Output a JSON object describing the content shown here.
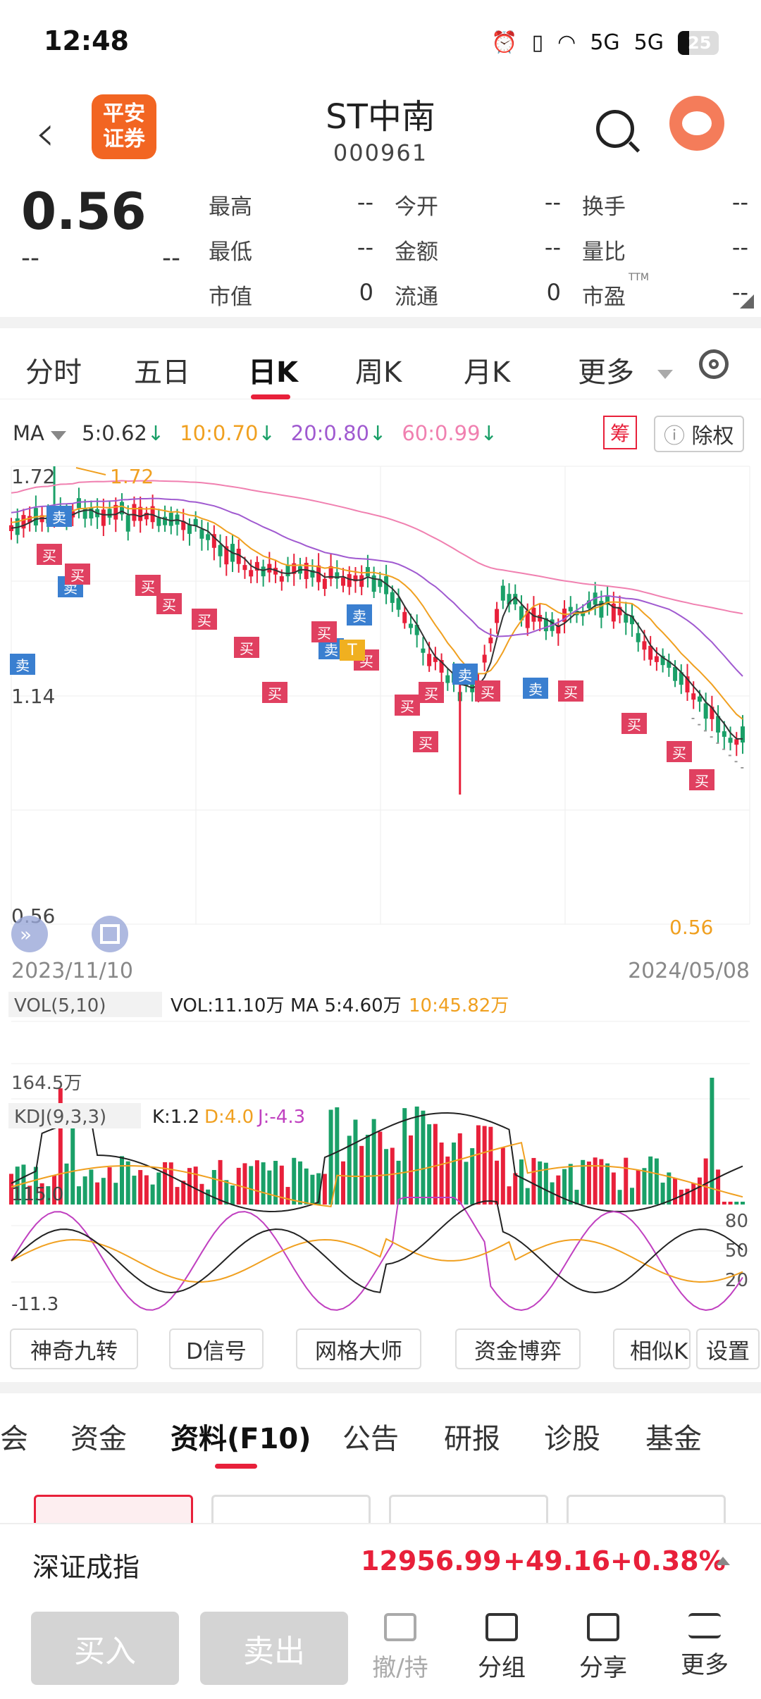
{
  "status_bar": {
    "time": "12:48",
    "battery": "25",
    "net1": "5G",
    "net2": "5G"
  },
  "header": {
    "back_icon": "chevron-left-icon",
    "logo_line1": "平安",
    "logo_line2": "证券",
    "title": "ST中南",
    "code": "000961"
  },
  "quote": {
    "price": "0.56",
    "change": "--",
    "change_pct": "--",
    "fields": [
      {
        "label": "最高",
        "value": "--"
      },
      {
        "label": "今开",
        "value": "--"
      },
      {
        "label": "换手",
        "value": "--"
      },
      {
        "label": "最低",
        "value": "--"
      },
      {
        "label": "金额",
        "value": "--"
      },
      {
        "label": "量比",
        "value": "--"
      },
      {
        "label": "市值",
        "value": "0"
      },
      {
        "label": "流通",
        "value": "0"
      },
      {
        "label": "市盈",
        "value": "--"
      }
    ],
    "ttm": "TTM"
  },
  "period_tabs": [
    "分时",
    "五日",
    "日K",
    "周K",
    "月K",
    "更多"
  ],
  "active_period": "日K",
  "ma_legend": {
    "label": "MA",
    "items": [
      {
        "text": "5:0.62",
        "color": "#333333"
      },
      {
        "text": "10:0.70",
        "color": "#f0a020"
      },
      {
        "text": "20:0.80",
        "color": "#a05ad0"
      },
      {
        "text": "60:0.99",
        "color": "#f080b0"
      }
    ],
    "chip": "筹",
    "rights": "除权"
  },
  "chart_data": {
    "type": "candlestick",
    "y_ticks": [
      "1.72",
      "1.14",
      "0.56"
    ],
    "ylim": [
      0.56,
      1.72
    ],
    "max_label": "1.72",
    "min_label": "0.56",
    "date_start": "2023/11/10",
    "date_end": "2024/05/08",
    "marker_sell": "卖",
    "marker_buy": "买",
    "marker_t": "T",
    "vol": {
      "label": "VOL(5,10)",
      "value": "VOL:11.10万",
      "ma5": "MA 5:4.60万",
      "ma10": "10:45.82万",
      "tick": "164.5万"
    },
    "kdj": {
      "label": "KDJ(9,3,3)",
      "k": "K:1.2",
      "d": "D:4.0",
      "j": "J:-4.3",
      "top": "115.0",
      "bottom": "-11.3",
      "levels": [
        "80",
        "50",
        "20"
      ]
    }
  },
  "indicator_buttons": [
    "神奇九转",
    "D信号",
    "网格大师",
    "资金博弈",
    "相似K",
    "设置"
  ],
  "info_tabs": [
    "会",
    "资金",
    "资料(F10)",
    "公告",
    "研报",
    "诊股",
    "基金"
  ],
  "active_info_tab": "资料(F10)",
  "index_bar": {
    "name": "深证成指",
    "value": "12956.99",
    "change": "+49.16",
    "pct": "+0.38%"
  },
  "bottom_actions": {
    "buy": "买入",
    "sell": "卖出",
    "cancel": "撤/持",
    "group": "分组",
    "share": "分享",
    "more": "更多"
  },
  "colors": {
    "up": "#e8203a",
    "down": "#1aa068",
    "accent": "#e8203a"
  }
}
